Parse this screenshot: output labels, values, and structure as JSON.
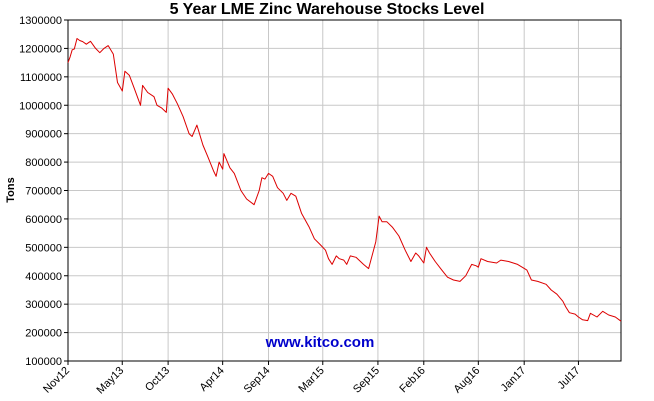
{
  "chart_data": {
    "type": "line",
    "title": "5 Year LME Zinc Warehouse Stocks Level",
    "xlabel": "",
    "ylabel": "Tons",
    "ylim": [
      100000,
      1300000
    ],
    "y_ticks": [
      100000,
      200000,
      300000,
      400000,
      500000,
      600000,
      700000,
      800000,
      900000,
      1000000,
      1100000,
      1200000,
      1300000
    ],
    "x_start": "2012-11-01",
    "x_end": "2017-11-20",
    "x_tick_labels": [
      "Nov12",
      "May13",
      "Oct13",
      "Apr14",
      "Sep14",
      "Mar15",
      "Sep15",
      "Feb16",
      "Aug16",
      "Jan17",
      "Jul17"
    ],
    "x_tick_dates": [
      "2012-11-01",
      "2013-05-01",
      "2013-10-01",
      "2014-04-01",
      "2014-09-01",
      "2015-03-01",
      "2015-09-01",
      "2016-02-01",
      "2016-08-01",
      "2017-01-01",
      "2017-07-01"
    ],
    "grid": true,
    "color": "#dd0000",
    "watermark": "www.kitco.com",
    "watermark_color": "#0000cc",
    "series": [
      {
        "values": [
          [
            "2012-11-01",
            1150000
          ],
          [
            "2012-11-08",
            1170000
          ],
          [
            "2012-11-15",
            1195000
          ],
          [
            "2012-11-22",
            1198000
          ],
          [
            "2012-12-01",
            1235000
          ],
          [
            "2012-12-10",
            1228000
          ],
          [
            "2012-12-20",
            1224000
          ],
          [
            "2013-01-01",
            1215000
          ],
          [
            "2013-01-15",
            1225000
          ],
          [
            "2013-02-01",
            1200000
          ],
          [
            "2013-02-15",
            1185000
          ],
          [
            "2013-03-01",
            1200000
          ],
          [
            "2013-03-15",
            1210000
          ],
          [
            "2013-04-01",
            1180000
          ],
          [
            "2013-04-15",
            1080000
          ],
          [
            "2013-05-01",
            1050000
          ],
          [
            "2013-05-10",
            1120000
          ],
          [
            "2013-05-25",
            1105000
          ],
          [
            "2013-06-10",
            1060000
          ],
          [
            "2013-07-01",
            1000000
          ],
          [
            "2013-07-08",
            1070000
          ],
          [
            "2013-07-25",
            1045000
          ],
          [
            "2013-08-15",
            1030000
          ],
          [
            "2013-08-25",
            1000000
          ],
          [
            "2013-09-10",
            990000
          ],
          [
            "2013-09-25",
            975000
          ],
          [
            "2013-10-01",
            1060000
          ],
          [
            "2013-10-15",
            1040000
          ],
          [
            "2013-11-01",
            1005000
          ],
          [
            "2013-11-20",
            960000
          ],
          [
            "2013-12-10",
            900000
          ],
          [
            "2013-12-20",
            890000
          ],
          [
            "2014-01-05",
            930000
          ],
          [
            "2014-01-25",
            860000
          ],
          [
            "2014-02-10",
            820000
          ],
          [
            "2014-03-01",
            770000
          ],
          [
            "2014-03-10",
            750000
          ],
          [
            "2014-03-20",
            800000
          ],
          [
            "2014-04-01",
            775000
          ],
          [
            "2014-04-05",
            830000
          ],
          [
            "2014-04-25",
            780000
          ],
          [
            "2014-05-10",
            760000
          ],
          [
            "2014-06-01",
            700000
          ],
          [
            "2014-06-20",
            670000
          ],
          [
            "2014-07-15",
            650000
          ],
          [
            "2014-08-01",
            700000
          ],
          [
            "2014-08-10",
            745000
          ],
          [
            "2014-08-20",
            740000
          ],
          [
            "2014-09-01",
            760000
          ],
          [
            "2014-09-15",
            750000
          ],
          [
            "2014-10-01",
            710000
          ],
          [
            "2014-10-20",
            690000
          ],
          [
            "2014-11-01",
            665000
          ],
          [
            "2014-11-15",
            690000
          ],
          [
            "2014-12-01",
            680000
          ],
          [
            "2014-12-20",
            620000
          ],
          [
            "2015-01-15",
            570000
          ],
          [
            "2015-02-01",
            530000
          ],
          [
            "2015-02-20",
            510000
          ],
          [
            "2015-03-10",
            490000
          ],
          [
            "2015-03-20",
            460000
          ],
          [
            "2015-04-01",
            440000
          ],
          [
            "2015-04-15",
            470000
          ],
          [
            "2015-04-25",
            460000
          ],
          [
            "2015-05-10",
            455000
          ],
          [
            "2015-05-20",
            440000
          ],
          [
            "2015-06-01",
            470000
          ],
          [
            "2015-06-20",
            465000
          ],
          [
            "2015-07-15",
            440000
          ],
          [
            "2015-08-01",
            425000
          ],
          [
            "2015-08-15",
            480000
          ],
          [
            "2015-08-25",
            520000
          ],
          [
            "2015-09-05",
            610000
          ],
          [
            "2015-09-15",
            590000
          ],
          [
            "2015-10-01",
            590000
          ],
          [
            "2015-10-20",
            570000
          ],
          [
            "2015-11-10",
            540000
          ],
          [
            "2015-12-01",
            490000
          ],
          [
            "2015-12-20",
            450000
          ],
          [
            "2016-01-05",
            480000
          ],
          [
            "2016-01-15",
            470000
          ],
          [
            "2016-02-01",
            445000
          ],
          [
            "2016-02-10",
            500000
          ],
          [
            "2016-02-20",
            480000
          ],
          [
            "2016-03-10",
            450000
          ],
          [
            "2016-04-01",
            420000
          ],
          [
            "2016-04-20",
            395000
          ],
          [
            "2016-05-10",
            385000
          ],
          [
            "2016-06-01",
            380000
          ],
          [
            "2016-06-20",
            400000
          ],
          [
            "2016-07-10",
            440000
          ],
          [
            "2016-07-25",
            435000
          ],
          [
            "2016-08-01",
            430000
          ],
          [
            "2016-08-10",
            460000
          ],
          [
            "2016-09-01",
            450000
          ],
          [
            "2016-10-01",
            445000
          ],
          [
            "2016-10-15",
            455000
          ],
          [
            "2016-11-10",
            450000
          ],
          [
            "2016-12-10",
            440000
          ],
          [
            "2017-01-10",
            420000
          ],
          [
            "2017-01-25",
            385000
          ],
          [
            "2017-02-15",
            380000
          ],
          [
            "2017-03-15",
            370000
          ],
          [
            "2017-04-01",
            350000
          ],
          [
            "2017-04-20",
            335000
          ],
          [
            "2017-05-10",
            310000
          ],
          [
            "2017-05-20",
            290000
          ],
          [
            "2017-06-01",
            270000
          ],
          [
            "2017-06-20",
            265000
          ],
          [
            "2017-07-01",
            255000
          ],
          [
            "2017-07-15",
            245000
          ],
          [
            "2017-08-01",
            242000
          ],
          [
            "2017-08-10",
            268000
          ],
          [
            "2017-09-01",
            255000
          ],
          [
            "2017-09-20",
            275000
          ],
          [
            "2017-10-10",
            262000
          ],
          [
            "2017-11-01",
            255000
          ],
          [
            "2017-11-20",
            240000
          ]
        ]
      }
    ]
  }
}
